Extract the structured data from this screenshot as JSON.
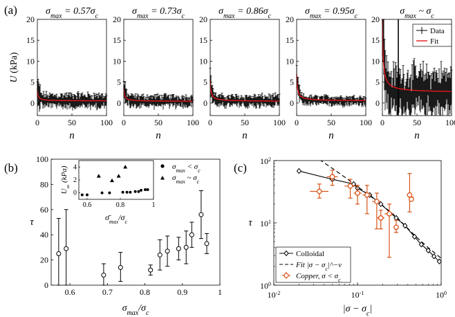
{
  "panel_labels": [
    "(a)",
    "(b)",
    "(c)"
  ],
  "chart_data": [
    {
      "type": "line",
      "panel": "(a)",
      "ylabel": "U (kPa)",
      "xlabel": "n",
      "xlim": [
        0,
        100
      ],
      "ylim": [
        -3,
        20
      ],
      "xticks": [
        0,
        50,
        100
      ],
      "yticks": [
        0,
        5,
        10,
        15,
        20
      ],
      "legend": {
        "entries": [
          "Data",
          "Fit"
        ],
        "position": "top-right of last subplot"
      },
      "colors": {
        "data": "#000000",
        "fit": "#e8161b"
      },
      "subplots": [
        {
          "title": "σmax = 0.57σc",
          "fit": {
            "initial": 3,
            "plateau": 0.5
          },
          "noise_amplitude": 1.2
        },
        {
          "title": "σmax = 0.73σc",
          "fit": {
            "initial": 3.5,
            "plateau": 0.4
          },
          "noise_amplitude": 1.0
        },
        {
          "title": "σmax = 0.86σc",
          "fit": {
            "initial": 5.5,
            "plateau": 0.4
          },
          "noise_amplitude": 1.0
        },
        {
          "title": "σmax = 0.95σc",
          "fit": {
            "initial": 7,
            "plateau": 0.5
          },
          "noise_amplitude": 0.8
        },
        {
          "title": "σmax ~ σc",
          "fit": {
            "initial": 20,
            "plateau": 2.5
          },
          "noise_amplitude": 4.0
        }
      ]
    },
    {
      "type": "scatter",
      "panel": "(b)",
      "xlabel": "σmax/σc",
      "ylabel": "τ",
      "xlim": [
        0.55,
        1.0
      ],
      "ylim": [
        0,
        100
      ],
      "xticks": [
        0.6,
        0.7,
        0.8,
        0.9,
        1
      ],
      "yticks": [
        0,
        20,
        40,
        60,
        80,
        100
      ],
      "series": [
        {
          "marker": "open-circle",
          "points": [
            {
              "x": 0.57,
              "y": 25,
              "lo": 0,
              "hi": 53
            },
            {
              "x": 0.59,
              "y": 29,
              "lo": 0,
              "hi": 60
            },
            {
              "x": 0.69,
              "y": 8,
              "lo": 0,
              "hi": 17
            },
            {
              "x": 0.735,
              "y": 14,
              "lo": 3,
              "hi": 26
            },
            {
              "x": 0.815,
              "y": 12,
              "lo": 8,
              "hi": 16
            },
            {
              "x": 0.84,
              "y": 24,
              "lo": 12,
              "hi": 36
            },
            {
              "x": 0.86,
              "y": 27,
              "lo": 15,
              "hi": 39
            },
            {
              "x": 0.89,
              "y": 29,
              "lo": 20,
              "hi": 38
            },
            {
              "x": 0.91,
              "y": 30,
              "lo": 17,
              "hi": 43
            },
            {
              "x": 0.925,
              "y": 40,
              "lo": 30,
              "hi": 50
            },
            {
              "x": 0.95,
              "y": 56,
              "lo": 37,
              "hi": 75
            },
            {
              "x": 0.965,
              "y": 33,
              "lo": 25,
              "hi": 41
            }
          ]
        }
      ],
      "inset": {
        "xlabel": "σ̄max/σc",
        "ylabel": "U∞ (kPa)",
        "xlim": [
          0.55,
          1.0
        ],
        "ylim": [
          -1,
          5
        ],
        "xticks": [
          0.6,
          0.8,
          1
        ],
        "yticks": [
          0,
          2,
          4
        ],
        "series": [
          {
            "name": "σmax < σc",
            "marker": "filled-circle",
            "points": [
              [
                0.57,
                -0.3
              ],
              [
                0.6,
                -0.3
              ],
              [
                0.69,
                0.0
              ],
              [
                0.735,
                0.0
              ],
              [
                0.815,
                0.1
              ],
              [
                0.84,
                0.1
              ],
              [
                0.86,
                0.1
              ],
              [
                0.89,
                0.2
              ],
              [
                0.91,
                0.2
              ],
              [
                0.925,
                0.4
              ],
              [
                0.95,
                0.5
              ],
              [
                0.965,
                0.5
              ]
            ]
          },
          {
            "name": "σmax ~ σc",
            "marker": "filled-triangle",
            "points": [
              [
                0.67,
                2.6
              ],
              [
                0.75,
                1.9
              ],
              [
                0.79,
                2.6
              ],
              [
                0.83,
                4.0
              ]
            ]
          }
        ]
      }
    },
    {
      "type": "line",
      "panel": "(c)",
      "xlabel": "|σ − σc|",
      "ylabel": "τ",
      "xscale": "log",
      "yscale": "log",
      "xlim": [
        0.01,
        1
      ],
      "ylim": [
        1,
        100
      ],
      "xtick_labels": [
        "10^-2",
        "10^-1",
        "10^0"
      ],
      "ytick_labels": [
        "10^0",
        "10^1",
        "10^2"
      ],
      "legend": {
        "entries": [
          "Colloidal",
          "Fit |σ − σc|^−ν",
          "Copper, σ < σc"
        ],
        "position": "lower-left"
      },
      "colors": {
        "colloidal": "#000000",
        "fit": "#000000",
        "copper": "#d95319"
      },
      "series": [
        {
          "name": "Colloidal",
          "marker": "open-diamond",
          "points": [
            [
              0.02,
              68
            ],
            [
              0.05,
              50
            ],
            [
              0.09,
              42
            ],
            [
              0.1,
              36
            ],
            [
              0.14,
              28
            ],
            [
              0.19,
              20
            ],
            [
              0.29,
              12
            ],
            [
              0.37,
              9
            ],
            [
              0.48,
              6
            ],
            [
              0.58,
              4.5
            ],
            [
              0.7,
              3.6
            ],
            [
              0.82,
              2.9
            ],
            [
              0.95,
              2.4
            ]
          ]
        },
        {
          "name": "Fit |σ − σc|^−ν",
          "style": "dashed",
          "points": [
            [
              0.03,
              120
            ],
            [
              0.05,
              75
            ],
            [
              0.08,
              48
            ],
            [
              0.12,
              32
            ],
            [
              0.2,
              19
            ],
            [
              0.3,
              12
            ],
            [
              0.5,
              6
            ],
            [
              0.7,
              4
            ],
            [
              1.0,
              2.7
            ]
          ]
        },
        {
          "name": "Copper, σ < σc",
          "marker": "open-circle-errorbar",
          "points": [
            {
              "x": 0.035,
              "y": 32,
              "ylo": 25,
              "yhi": 42,
              "xlo": 0.027,
              "xhi": 0.045
            },
            {
              "x": 0.05,
              "y": 55,
              "ylo": 40,
              "yhi": 70,
              "xlo": 0.043,
              "xhi": 0.058
            },
            {
              "x": 0.082,
              "y": 39,
              "ylo": 25,
              "yhi": 50,
              "xlo": 0.07,
              "xhi": 0.095
            },
            {
              "x": 0.1,
              "y": 30,
              "ylo": 20,
              "yhi": 40,
              "xlo": 0.09,
              "xhi": 0.112
            },
            {
              "x": 0.13,
              "y": 28,
              "ylo": 14,
              "yhi": 40,
              "xlo": 0.115,
              "xhi": 0.145
            },
            {
              "x": 0.17,
              "y": 22,
              "ylo": 8,
              "yhi": 30,
              "xlo": 0.15,
              "xhi": 0.19
            },
            {
              "x": 0.19,
              "y": 12,
              "ylo": 8,
              "yhi": 16,
              "xlo": 0.17,
              "xhi": 0.21
            },
            {
              "x": 0.24,
              "y": 14,
              "ylo": 2.8,
              "yhi": 20,
              "xlo": 0.21,
              "xhi": 0.27
            },
            {
              "x": 0.29,
              "y": 8.5,
              "ylo": 7,
              "yhi": 11,
              "xlo": 0.27,
              "xhi": 0.31
            },
            {
              "x": 0.42,
              "y": 28,
              "ylo": 15,
              "yhi": 62,
              "xlo": 0.4,
              "xhi": 0.44
            },
            {
              "x": 0.44,
              "y": 24,
              "ylo": 23,
              "yhi": 26,
              "xlo": 0.43,
              "xhi": 0.45
            }
          ]
        }
      ]
    }
  ]
}
